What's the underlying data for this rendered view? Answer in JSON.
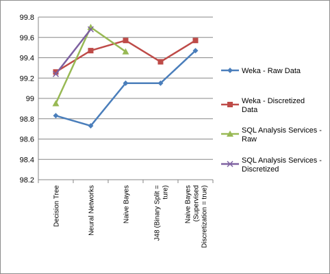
{
  "chart_data": {
    "type": "line",
    "categories": [
      [
        "Decision Tree"
      ],
      [
        "Neural Networks"
      ],
      [
        "Naive Bayes"
      ],
      [
        "J48 (Binary Split =",
        "ture)"
      ],
      [
        "Naive Bayes",
        "(Supervised",
        "Discretization = true)"
      ]
    ],
    "ylim": [
      98.2,
      99.8
    ],
    "yticks": [
      "98.2",
      "98.4",
      "98.6",
      "98.8",
      "99",
      "99.2",
      "99.4",
      "99.6",
      "99.8"
    ],
    "grid": true,
    "legend_position": "right",
    "series": [
      {
        "name": [
          "Weka - Raw Data"
        ],
        "color": "#4a7ebb",
        "marker": "diamond",
        "values": [
          98.83,
          98.73,
          99.15,
          99.15,
          99.47
        ]
      },
      {
        "name": [
          "Weka - Discretized",
          "Data"
        ],
        "color": "#be4b48",
        "marker": "square",
        "values": [
          99.26,
          99.47,
          99.57,
          99.36,
          99.57
        ]
      },
      {
        "name": [
          "SQL Analysis Services -",
          "Raw"
        ],
        "color": "#98b954",
        "marker": "triangle",
        "values": [
          98.95,
          99.7,
          99.46,
          null,
          null
        ]
      },
      {
        "name": [
          "SQL Analysis Services -",
          "Discretized"
        ],
        "color": "#7d60a0",
        "marker": "x",
        "values": [
          99.24,
          99.68,
          null,
          null,
          null
        ]
      }
    ]
  }
}
